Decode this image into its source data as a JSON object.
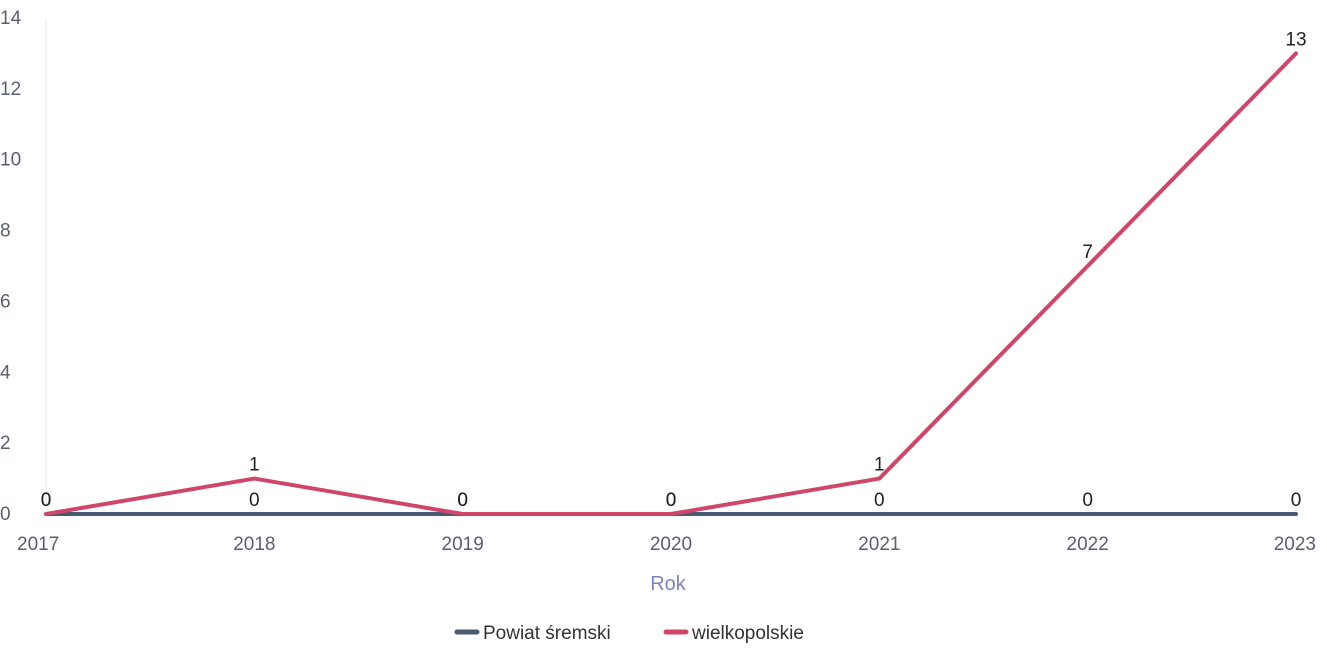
{
  "chart_data": {
    "type": "line",
    "x": [
      "2017",
      "2018",
      "2019",
      "2020",
      "2021",
      "2022",
      "2023"
    ],
    "series": [
      {
        "name": "Powiat śremski",
        "color": "#4a5a72",
        "values": [
          0,
          0,
          0,
          0,
          0,
          0,
          0
        ]
      },
      {
        "name": "wielkopolskie",
        "color": "#d0466a",
        "values": [
          0,
          1,
          0,
          0,
          1,
          7,
          13
        ]
      }
    ],
    "ylim": [
      0,
      14
    ],
    "yticks": [
      "0",
      "2",
      "4",
      "6",
      "8",
      "10",
      "12",
      "14"
    ],
    "xlabel": "Rok",
    "ylabel": "",
    "grid": false,
    "legend_position": "bottom-center"
  }
}
